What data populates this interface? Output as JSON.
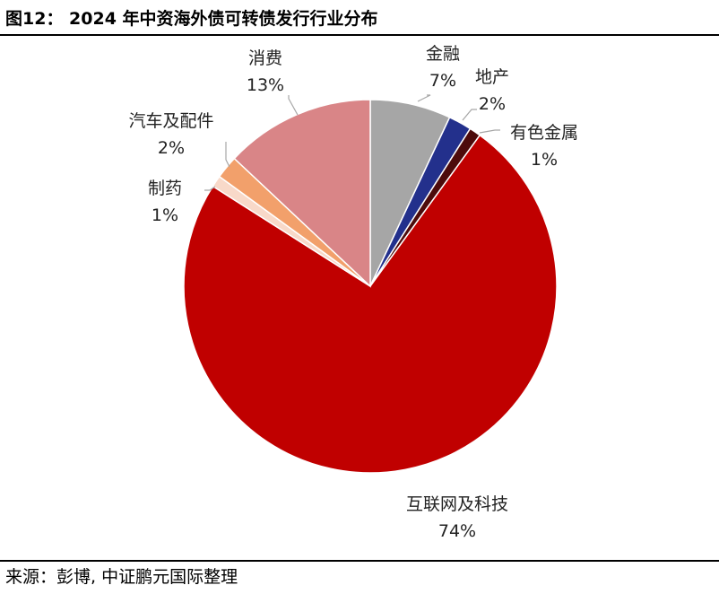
{
  "header": {
    "title": "图12： 2024 年中资海外债可转债发行行业分布"
  },
  "footer": {
    "source": "来源：彭博, 中证鹏元国际整理"
  },
  "chart_data": {
    "type": "pie",
    "start_angle_deg": 0,
    "direction": "clockwise",
    "slices": [
      {
        "name": "金融",
        "value": 7,
        "label": "7%",
        "color": "#a6a6a6"
      },
      {
        "name": "地产",
        "value": 2,
        "label": "2%",
        "color": "#23308c"
      },
      {
        "name": "有色金属",
        "value": 1,
        "label": "1%",
        "color": "#4d0b0b"
      },
      {
        "name": "互联网及科技",
        "value": 74,
        "label": "74%",
        "color": "#c00000"
      },
      {
        "name": "制药",
        "value": 1,
        "label": "1%",
        "color": "#f8d9c9"
      },
      {
        "name": "汽车及配件",
        "value": 2,
        "label": "2%",
        "color": "#f2a06b"
      },
      {
        "name": "消费",
        "value": 13,
        "label": "13%",
        "color": "#d98587"
      }
    ]
  }
}
